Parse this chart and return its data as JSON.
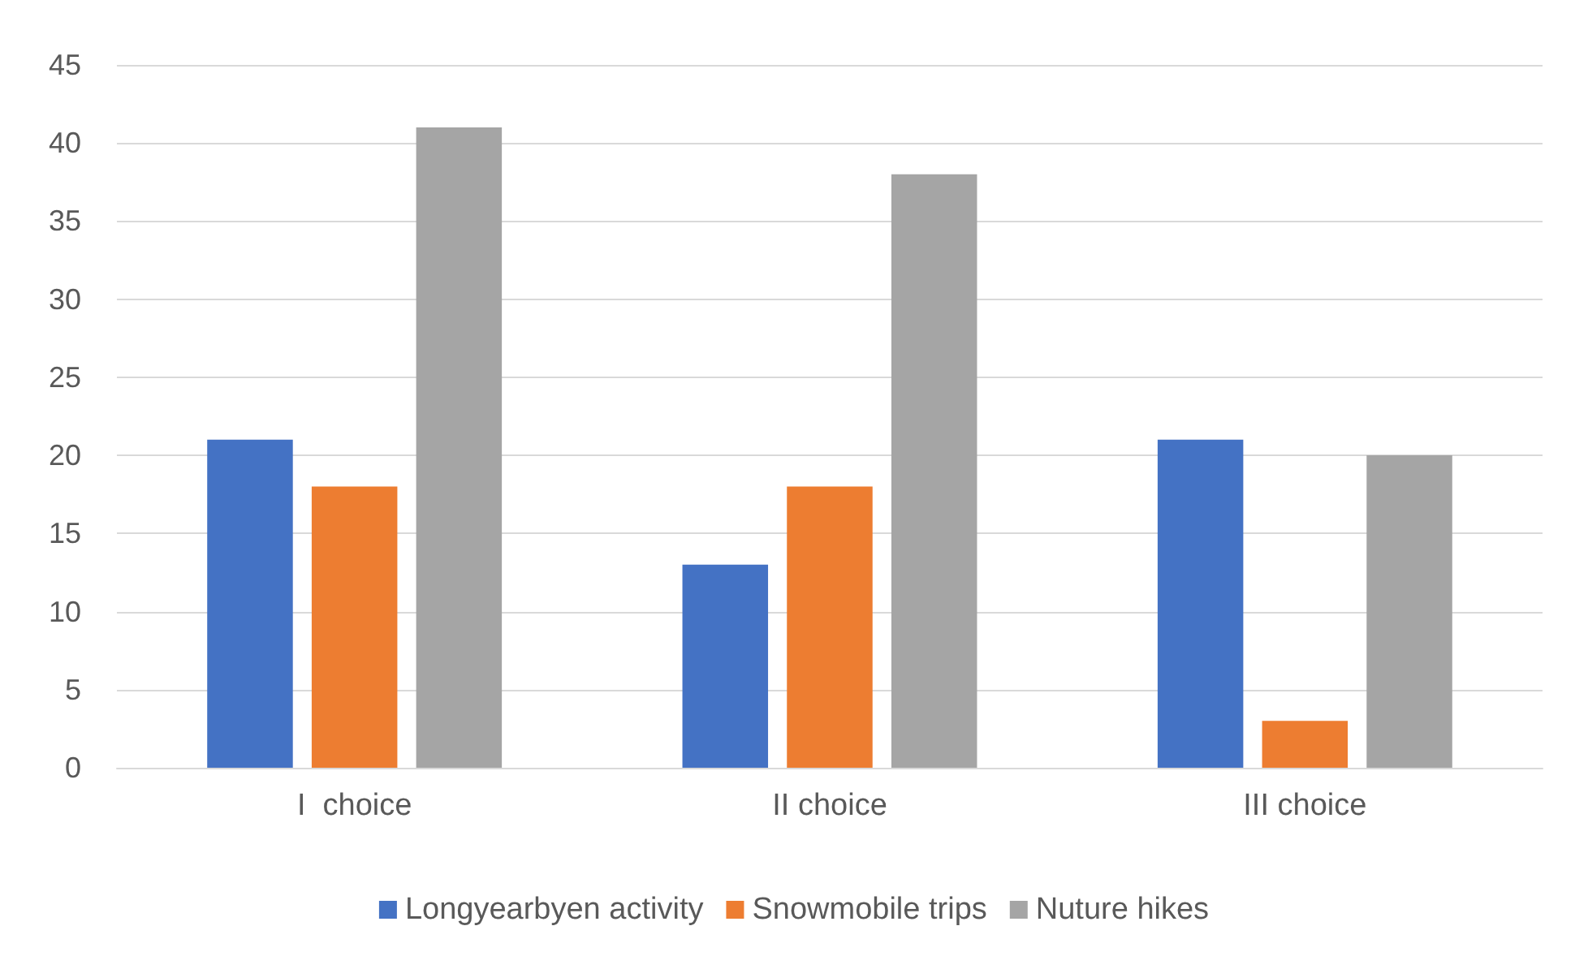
{
  "chart_data": {
    "type": "bar",
    "categories": [
      "I  choice",
      "II choice",
      "III choice"
    ],
    "series": [
      {
        "name": "Longyearbyen activity",
        "color": "#4472c4",
        "values": [
          21,
          13,
          21
        ]
      },
      {
        "name": "Snowmobile trips",
        "color": "#ed7d31",
        "values": [
          18,
          18,
          3
        ]
      },
      {
        "name": "Nuture hikes",
        "color": "#a5a5a5",
        "values": [
          41,
          38,
          20
        ]
      }
    ],
    "ylim": [
      0,
      45
    ],
    "yticks": [
      0,
      5,
      10,
      15,
      20,
      25,
      30,
      35,
      40,
      45
    ],
    "grid": "y",
    "legend": "bottom"
  }
}
